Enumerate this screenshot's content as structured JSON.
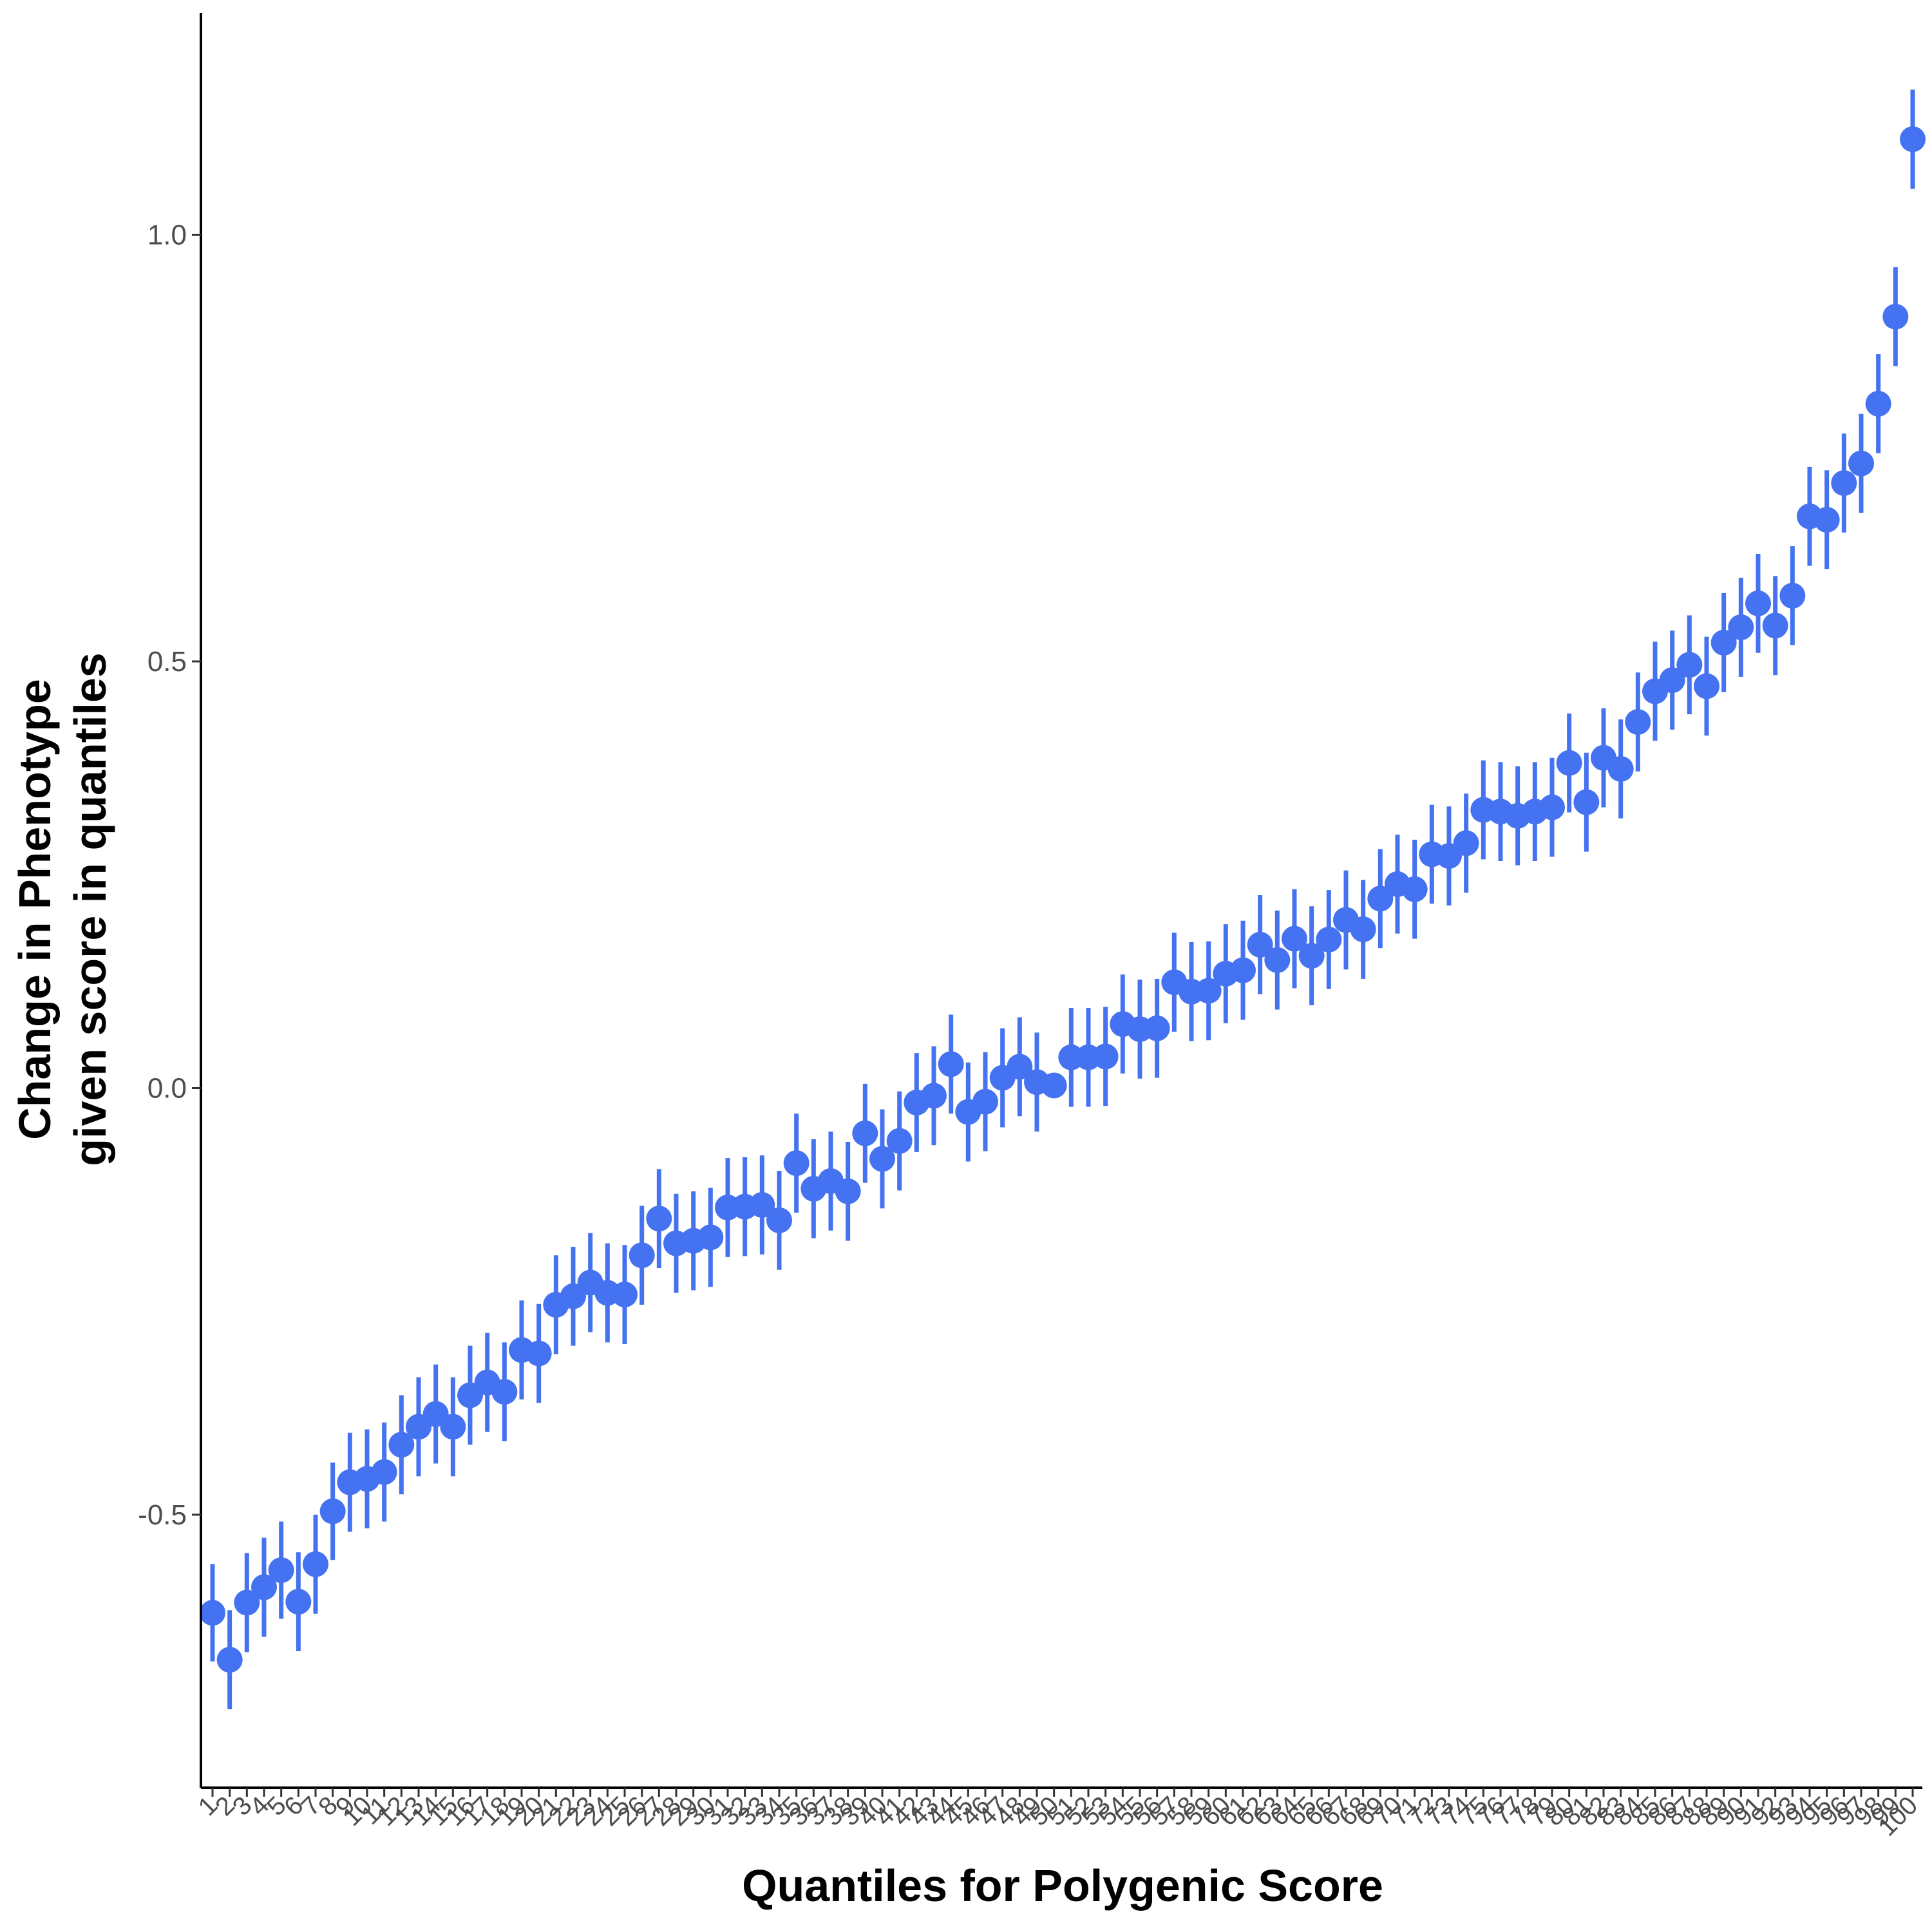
{
  "chart_data": {
    "type": "scatter",
    "title": "",
    "xlabel": "Quantiles for Polygenic Score",
    "ylabel": [
      "Change in Phenotype",
      "given score in quantiles"
    ],
    "ylim": [
      -0.82,
      1.26
    ],
    "y_ticks": [
      -0.5,
      0.0,
      0.5,
      1.0
    ],
    "y_tick_labels": [
      "-0.5",
      "0.0",
      "0.5",
      "1.0"
    ],
    "categories": [
      "1",
      "2",
      "3",
      "4",
      "5",
      "6",
      "7",
      "8",
      "9",
      "10",
      "11",
      "12",
      "13",
      "14",
      "15",
      "16",
      "17",
      "18",
      "19",
      "20",
      "21",
      "22",
      "23",
      "24",
      "25",
      "26",
      "27",
      "28",
      "29",
      "30",
      "31",
      "32",
      "33",
      "34",
      "35",
      "36",
      "37",
      "38",
      "39",
      "40",
      "41",
      "42",
      "43",
      "44",
      "45",
      "46",
      "47",
      "48",
      "49",
      "50",
      "51",
      "52",
      "53",
      "54",
      "55",
      "56",
      "57",
      "58",
      "59",
      "60",
      "61",
      "62",
      "63",
      "64",
      "65",
      "66",
      "67",
      "68",
      "69",
      "70",
      "71",
      "72",
      "73",
      "74",
      "75",
      "76",
      "77",
      "78",
      "79",
      "80",
      "81",
      "82",
      "83",
      "84",
      "85",
      "86",
      "87",
      "88",
      "89",
      "90",
      "91",
      "92",
      "93",
      "94",
      "95",
      "96",
      "97",
      "98",
      "99",
      "100"
    ],
    "series": [
      {
        "values": [
          -0.615,
          -0.67,
          -0.603,
          -0.585,
          -0.565,
          -0.602,
          -0.558,
          -0.496,
          -0.462,
          -0.458,
          -0.45,
          -0.418,
          -0.397,
          -0.382,
          -0.397,
          -0.36,
          -0.345,
          -0.356,
          -0.307,
          -0.311,
          -0.254,
          -0.244,
          -0.228,
          -0.24,
          -0.242,
          -0.196,
          -0.153,
          -0.182,
          -0.179,
          -0.175,
          -0.14,
          -0.139,
          -0.137,
          -0.155,
          -0.088,
          -0.118,
          -0.109,
          -0.121,
          -0.053,
          -0.083,
          -0.062,
          -0.017,
          -0.009,
          0.028,
          -0.028,
          -0.016,
          0.012,
          0.025,
          0.007,
          0.003,
          0.036,
          0.036,
          0.037,
          0.075,
          0.069,
          0.07,
          0.124,
          0.113,
          0.114,
          0.134,
          0.138,
          0.168,
          0.15,
          0.175,
          0.155,
          0.174,
          0.197,
          0.186,
          0.222,
          0.239,
          0.233,
          0.274,
          0.272,
          0.287,
          0.326,
          0.324,
          0.319,
          0.324,
          0.329,
          0.381,
          0.335,
          0.387,
          0.374,
          0.429,
          0.465,
          0.478,
          0.496,
          0.471,
          0.522,
          0.54,
          0.568,
          0.542,
          0.577,
          0.67,
          0.666,
          0.709,
          0.732,
          0.802,
          0.904,
          1.112
        ],
        "errors": [
          0.057,
          0.058,
          0.058,
          0.058,
          0.057,
          0.058,
          0.058,
          0.057,
          0.058,
          0.058,
          0.058,
          0.058,
          0.058,
          0.058,
          0.058,
          0.058,
          0.058,
          0.058,
          0.058,
          0.058,
          0.058,
          0.058,
          0.058,
          0.058,
          0.058,
          0.058,
          0.058,
          0.058,
          0.058,
          0.058,
          0.058,
          0.058,
          0.058,
          0.058,
          0.058,
          0.058,
          0.058,
          0.058,
          0.058,
          0.058,
          0.058,
          0.058,
          0.058,
          0.058,
          0.058,
          0.058,
          0.058,
          0.058,
          0.058,
          0.0,
          0.058,
          0.058,
          0.058,
          0.058,
          0.058,
          0.058,
          0.058,
          0.058,
          0.058,
          0.058,
          0.058,
          0.058,
          0.058,
          0.058,
          0.058,
          0.058,
          0.058,
          0.058,
          0.058,
          0.058,
          0.058,
          0.058,
          0.058,
          0.058,
          0.058,
          0.058,
          0.058,
          0.058,
          0.058,
          0.058,
          0.058,
          0.058,
          0.058,
          0.058,
          0.058,
          0.058,
          0.058,
          0.058,
          0.058,
          0.058,
          0.058,
          0.058,
          0.058,
          0.058,
          0.058,
          0.058,
          0.058,
          0.058,
          0.058,
          0.058
        ]
      }
    ],
    "point_color": "#4472F0",
    "errorbar_color": "#4472F0",
    "grid": false,
    "legend": "none"
  }
}
